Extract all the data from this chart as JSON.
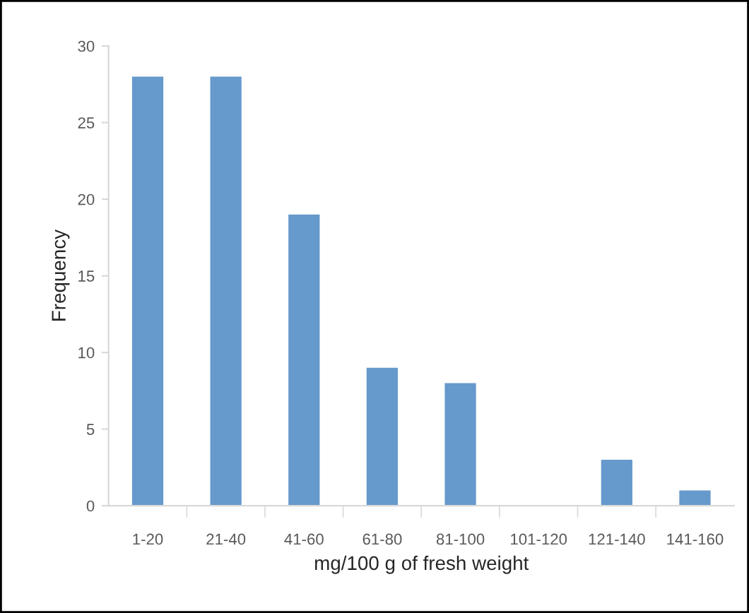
{
  "chart_data": {
    "type": "bar",
    "xlabel": "mg/100 g of fresh weight",
    "ylabel": "Frequency",
    "categories": [
      "1-20",
      "21-40",
      "41-60",
      "61-80",
      "81-100",
      "101-120",
      "121-140",
      "141-160"
    ],
    "values": [
      28,
      28,
      19,
      9,
      8,
      0,
      3,
      1
    ],
    "color": "#6699cc",
    "ylim": [
      0,
      30
    ],
    "yticks": [
      0,
      5,
      10,
      15,
      20,
      25,
      30
    ],
    "grid": false,
    "legend": false
  }
}
